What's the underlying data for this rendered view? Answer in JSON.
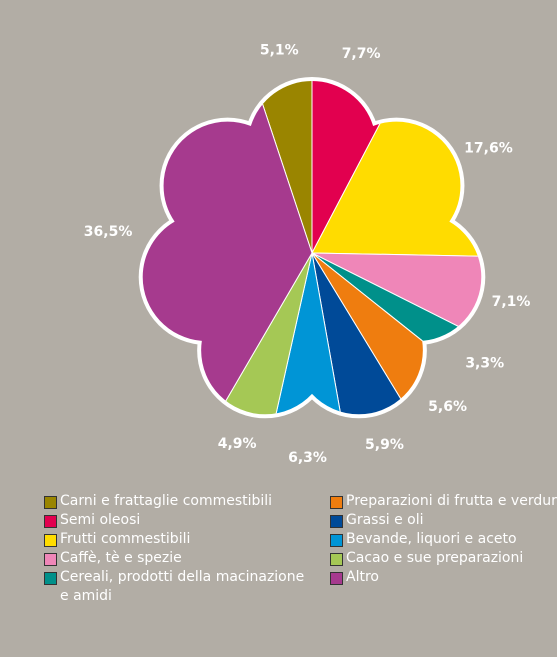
{
  "chart_data": {
    "type": "pie",
    "categories": [
      "Carni e frattaglie commestibili",
      "Semi oleosi",
      "Frutti commestibili",
      "Caffè, tè e spezie",
      "Cereali, prodotti della macinazione e amidi",
      "Preparazioni di frutta e verdura",
      "Grassi e oli",
      "Bevande, liquori e aceto",
      "Cacao e sue preparazioni",
      "Altro"
    ],
    "values": [
      5.1,
      7.7,
      17.6,
      7.1,
      3.3,
      5.6,
      5.9,
      6.3,
      4.9,
      36.5
    ],
    "value_labels": [
      "5,1%",
      "7,7%",
      "17,6%",
      "7,1%",
      "3,3%",
      "5,6%",
      "5,9%",
      "6,3%",
      "4,9%",
      "36,5%"
    ],
    "colors": [
      "#9a8500",
      "#e2004f",
      "#ffdc00",
      "#ef86b8",
      "#00908a",
      "#ef7d0f",
      "#004a98",
      "#0095d6",
      "#a5c855",
      "#a63a8e"
    ]
  }
}
